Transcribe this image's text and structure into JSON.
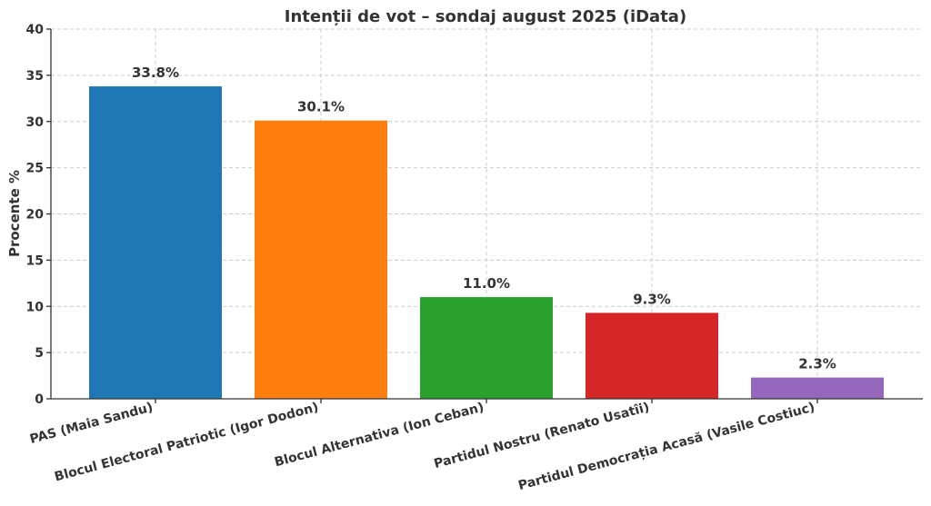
{
  "chart_data": {
    "type": "bar",
    "title": "Intenții de vot – sondaj august 2025 (iData)",
    "xlabel": "",
    "ylabel": "Procente %",
    "ylim": [
      0,
      40
    ],
    "yticks": [
      "0",
      "5",
      "10",
      "15",
      "20",
      "25",
      "30",
      "35",
      "40"
    ],
    "grid": true,
    "categories": [
      "PAS (Maia Sandu)",
      "Blocul Electoral Patriotic (Igor Dodon)",
      "Blocul Alternativa (Ion Ceban)",
      "Partidul Nostru (Renato Usatîi)",
      "Partidul Democrația Acasă (Vasile Costiuc)"
    ],
    "values": [
      33.8,
      30.1,
      11.0,
      9.3,
      2.3
    ],
    "data_labels": [
      "33.8%",
      "30.1%",
      "11.0%",
      "9.3%",
      "2.3%"
    ],
    "colors": [
      "#1f77b4",
      "#ff7f0e",
      "#2ca02c",
      "#d62728",
      "#9467bd"
    ]
  }
}
